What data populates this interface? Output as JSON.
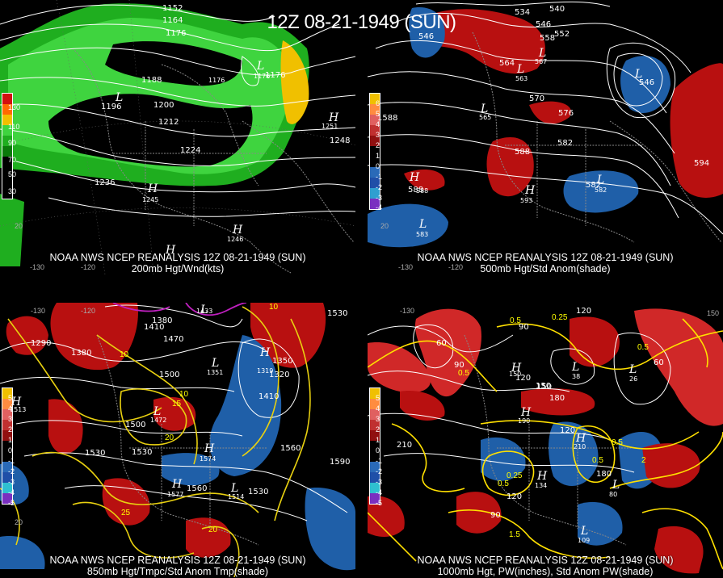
{
  "title": "12Z 08-21-1949 (SUN)",
  "colors": {
    "background": "#000000",
    "green": "#22c422",
    "yellow": "#ffcc00",
    "red": "#b81010",
    "blue": "#1f5fa8",
    "contour": "#ffffff",
    "temp": "#e8d010",
    "magenta": "#c020c0"
  },
  "panels": [
    {
      "caption_line1": "NOAA NWS NCEP REANALYSIS 12Z 08-21-1949 (SUN)",
      "caption_line2": "200mb Hgt/Wnd(kts)",
      "legend": [
        "130",
        "110",
        "90",
        "70",
        "50",
        "30"
      ],
      "heights": [
        {
          "text": "1152"
        },
        {
          "text": "1164"
        },
        {
          "text": "1176"
        },
        {
          "text": "1188"
        },
        {
          "text": "1200"
        },
        {
          "text": "1212"
        },
        {
          "text": "1224"
        },
        {
          "text": "1236"
        },
        {
          "text": "1248"
        },
        {
          "text": "1176"
        },
        {
          "text": "1176"
        },
        {
          "text": "1196"
        }
      ],
      "centers": [
        {
          "letter": "H",
          "value": "1245"
        },
        {
          "letter": "H",
          "value": "1246"
        },
        {
          "letter": "H",
          "value": "1251"
        },
        {
          "letter": "H",
          "value": ""
        },
        {
          "letter": "L",
          "value": "1176"
        },
        {
          "letter": "L",
          "value": ""
        }
      ],
      "ticks": [
        "-130",
        "-120",
        "20"
      ]
    },
    {
      "caption_line1": "NOAA NWS NCEP REANALYSIS 12Z 08-21-1949 (SUN)",
      "caption_line2": "500mb Hgt/Std Anom(shade)",
      "legend": [
        "6",
        "5",
        "4",
        "3",
        "2",
        "1",
        "0",
        "-1",
        "-2",
        "-3",
        "-4",
        "-5"
      ],
      "heights": [
        {
          "text": "534"
        },
        {
          "text": "540"
        },
        {
          "text": "546"
        },
        {
          "text": "552"
        },
        {
          "text": "558"
        },
        {
          "text": "564"
        },
        {
          "text": "570"
        },
        {
          "text": "576"
        },
        {
          "text": "582"
        },
        {
          "text": "588"
        },
        {
          "text": "588"
        },
        {
          "text": "582"
        },
        {
          "text": "594"
        },
        {
          "text": "546"
        },
        {
          "text": "546"
        },
        {
          "text": "1588"
        }
      ],
      "centers": [
        {
          "letter": "H",
          "value": "588"
        },
        {
          "letter": "H",
          "value": "593"
        },
        {
          "letter": "L",
          "value": "583"
        },
        {
          "letter": "L",
          "value": "582"
        },
        {
          "letter": "L",
          "value": "567"
        },
        {
          "letter": "L",
          "value": "563"
        },
        {
          "letter": "L",
          "value": "546"
        },
        {
          "letter": "L",
          "value": "565"
        }
      ],
      "ticks": [
        "20",
        "-120",
        "-130"
      ]
    },
    {
      "caption_line1": "NOAA NWS NCEP REANALYSIS 12Z 08-21-1949 (SUN)",
      "caption_line2": "850mb Hgt/Tmpc/Std Anom Tmp(shade)",
      "legend": [
        "5",
        "4",
        "3",
        "2",
        "1",
        "0",
        "-1",
        "-2",
        "-3",
        "-4",
        "-5"
      ],
      "heights": [
        {
          "text": "1290"
        },
        {
          "text": "1380"
        },
        {
          "text": "1380"
        },
        {
          "text": "1410"
        },
        {
          "text": "1470"
        },
        {
          "text": "1500"
        },
        {
          "text": "1500"
        },
        {
          "text": "1530"
        },
        {
          "text": "1530"
        },
        {
          "text": "1560"
        },
        {
          "text": "1530"
        },
        {
          "text": "1560"
        },
        {
          "text": "1590"
        },
        {
          "text": "1530"
        },
        {
          "text": "1410"
        },
        {
          "text": "1350"
        },
        {
          "text": "1320"
        }
      ],
      "temps": [
        {
          "text": "10"
        },
        {
          "text": "15"
        },
        {
          "text": "20"
        },
        {
          "text": "25"
        },
        {
          "text": "20"
        },
        {
          "text": "10"
        },
        {
          "text": "10"
        }
      ],
      "centers": [
        {
          "letter": "H",
          "value": "1513"
        },
        {
          "letter": "H",
          "value": "1574"
        },
        {
          "letter": "H",
          "value": "1577"
        },
        {
          "letter": "L",
          "value": "1472"
        },
        {
          "letter": "L",
          "value": "1514"
        },
        {
          "letter": "L",
          "value": "1351"
        },
        {
          "letter": "L",
          "value": "1433"
        },
        {
          "letter": "H",
          "value": "1319"
        }
      ],
      "ticks": [
        "20",
        "-130",
        "-120"
      ]
    },
    {
      "caption_line1": "NOAA NWS NCEP REANALYSIS 12Z 08-21-1949 (SUN)",
      "caption_line2": "1000mb Hgt, PW(inches), Std Anom PW(shade)",
      "legend": [
        "5",
        "4",
        "3",
        "2",
        "1",
        "0",
        "-1",
        "-2",
        "-3",
        "-4",
        "-5"
      ],
      "heights": [
        {
          "text": "60"
        },
        {
          "text": "90"
        },
        {
          "text": "120"
        },
        {
          "text": "150"
        },
        {
          "text": "180"
        },
        {
          "text": "210"
        },
        {
          "text": "120"
        },
        {
          "text": "90"
        },
        {
          "text": "120"
        },
        {
          "text": "180"
        },
        {
          "text": "60"
        },
        {
          "text": "150"
        },
        {
          "text": "120"
        },
        {
          "text": "90"
        }
      ],
      "temps": [
        {
          "text": "0.5"
        },
        {
          "text": "0.25"
        },
        {
          "text": "0.5"
        },
        {
          "text": "0.5"
        },
        {
          "text": "0.5"
        },
        {
          "text": "1.5"
        },
        {
          "text": "0.25"
        },
        {
          "text": "0.5"
        },
        {
          "text": "0.5"
        },
        {
          "text": "2"
        }
      ],
      "centers": [
        {
          "letter": "L",
          "value": "38"
        },
        {
          "letter": "L",
          "value": "26"
        },
        {
          "letter": "H",
          "value": "150"
        },
        {
          "letter": "H",
          "value": "210"
        },
        {
          "letter": "H",
          "value": "134"
        },
        {
          "letter": "L",
          "value": "109"
        },
        {
          "letter": "L",
          "value": "80"
        },
        {
          "letter": "H",
          "value": "190"
        }
      ],
      "ticks": [
        "150",
        "-130"
      ]
    }
  ]
}
